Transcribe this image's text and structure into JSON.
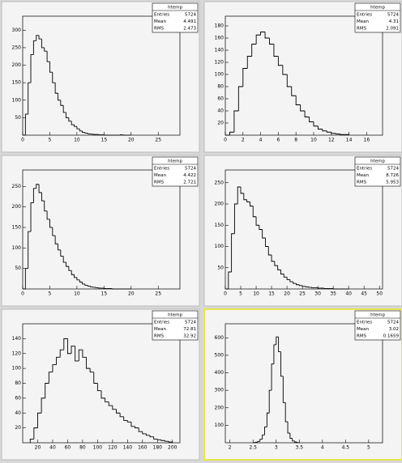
{
  "chart_data": [
    {
      "type": "histogram",
      "color": "#000000",
      "bins": [
        0,
        0.5,
        1,
        1.5,
        2,
        2.5,
        3,
        3.5,
        4,
        4.5,
        5,
        5.5,
        6,
        6.5,
        7,
        7.5,
        8,
        8.5,
        9,
        9.5,
        10,
        10.5,
        11,
        11.5,
        12,
        12.5,
        13,
        13.5,
        14,
        14.5,
        15,
        15.5,
        16,
        16.5,
        17,
        17.5,
        18,
        18.5,
        19,
        19.5,
        20
      ],
      "values": [
        0,
        60,
        150,
        230,
        270,
        285,
        275,
        250,
        240,
        210,
        180,
        150,
        120,
        100,
        85,
        65,
        50,
        40,
        30,
        25,
        18,
        12,
        8,
        6,
        4,
        3,
        2,
        2,
        1,
        1,
        0,
        0,
        0,
        0,
        0,
        0,
        1,
        0,
        0,
        0
      ],
      "xlim": [
        0,
        29
      ],
      "xticks": [
        0,
        5,
        10,
        15,
        20,
        25
      ],
      "ylim": [
        0,
        340
      ],
      "yticks": [
        50,
        100,
        150,
        200,
        250,
        300
      ],
      "stats": {
        "name": "htemp",
        "rows": [
          [
            "Entries",
            "5724"
          ],
          [
            "Mean",
            "4.491"
          ],
          [
            "RMS",
            "2.473"
          ]
        ]
      }
    },
    {
      "type": "histogram",
      "color": "#000000",
      "bins": [
        0,
        0.5,
        1,
        1.5,
        2,
        2.5,
        3,
        3.5,
        4,
        4.5,
        5,
        5.5,
        6,
        6.5,
        7,
        7.5,
        8,
        8.5,
        9,
        9.5,
        10,
        10.5,
        11,
        11.5,
        12,
        12.5,
        13,
        13.5,
        14
      ],
      "values": [
        0,
        5,
        40,
        80,
        110,
        130,
        150,
        165,
        170,
        160,
        150,
        130,
        115,
        100,
        80,
        65,
        50,
        40,
        30,
        22,
        15,
        10,
        7,
        5,
        3,
        2,
        1,
        1
      ],
      "xlim": [
        0,
        17.8
      ],
      "xticks": [
        0,
        2,
        4,
        6,
        8,
        10,
        12,
        14,
        16
      ],
      "ylim": [
        0,
        196
      ],
      "yticks": [
        20,
        40,
        60,
        80,
        100,
        120,
        140,
        160,
        180
      ],
      "stats": {
        "name": "htemp",
        "rows": [
          [
            "Entries",
            "5724"
          ],
          [
            "Mean",
            "4.31"
          ],
          [
            "RMS",
            "2.091"
          ]
        ]
      }
    },
    {
      "type": "histogram",
      "color": "#000000",
      "bins": [
        0,
        0.5,
        1,
        1.5,
        2,
        2.5,
        3,
        3.5,
        4,
        4.5,
        5,
        5.5,
        6,
        6.5,
        7,
        7.5,
        8,
        8.5,
        9,
        9.5,
        10,
        10.5,
        11,
        11.5,
        12,
        12.5,
        13,
        13.5,
        14,
        14.5,
        15,
        15.5,
        16,
        16.5,
        17,
        17.5,
        18,
        18.5,
        19,
        19.5,
        20
      ],
      "values": [
        0,
        50,
        140,
        210,
        245,
        255,
        235,
        215,
        190,
        170,
        150,
        130,
        110,
        95,
        80,
        65,
        55,
        45,
        35,
        28,
        22,
        17,
        12,
        9,
        7,
        5,
        4,
        3,
        2,
        2,
        1,
        1,
        1,
        0,
        0,
        0,
        0,
        0,
        0,
        0
      ],
      "xlim": [
        0,
        29
      ],
      "xticks": [
        0,
        5,
        10,
        15,
        20,
        25
      ],
      "ylim": [
        0,
        290
      ],
      "yticks": [
        50,
        100,
        150,
        200,
        250
      ],
      "stats": {
        "name": "htemp",
        "rows": [
          [
            "Entries",
            "5724"
          ],
          [
            "Mean",
            "4.422"
          ],
          [
            "RMS",
            "2.721"
          ]
        ]
      }
    },
    {
      "type": "histogram",
      "color": "#000000",
      "bins": [
        0,
        1,
        2,
        3,
        4,
        5,
        6,
        7,
        8,
        9,
        10,
        11,
        12,
        13,
        14,
        15,
        16,
        17,
        18,
        19,
        20,
        21,
        22,
        23,
        24,
        25,
        26,
        27,
        28,
        29,
        30,
        31,
        32,
        33,
        34,
        35,
        36,
        37,
        38,
        39,
        40
      ],
      "values": [
        0,
        40,
        130,
        200,
        240,
        225,
        210,
        205,
        195,
        170,
        150,
        140,
        120,
        100,
        80,
        65,
        55,
        45,
        35,
        28,
        22,
        17,
        13,
        10,
        8,
        6,
        5,
        4,
        3,
        3,
        2,
        2,
        1,
        1,
        1,
        0,
        0,
        0,
        0,
        0
      ],
      "xlim": [
        0,
        51
      ],
      "xticks": [
        0,
        5,
        10,
        15,
        20,
        25,
        30,
        35,
        40,
        45,
        50
      ],
      "ylim": [
        0,
        280
      ],
      "yticks": [
        50,
        100,
        150,
        200,
        250
      ],
      "stats": {
        "name": "htemp",
        "rows": [
          [
            "Entries",
            "5724"
          ],
          [
            "Mean",
            "8.726"
          ],
          [
            "RMS",
            "5.953"
          ]
        ]
      }
    },
    {
      "type": "histogram",
      "color": "#000000",
      "bins": [
        10,
        15,
        20,
        25,
        30,
        35,
        40,
        45,
        50,
        55,
        60,
        65,
        70,
        75,
        80,
        85,
        90,
        95,
        100,
        105,
        110,
        115,
        120,
        125,
        130,
        135,
        140,
        145,
        150,
        155,
        160,
        165,
        170,
        175,
        180,
        185,
        190,
        195,
        200
      ],
      "values": [
        5,
        20,
        40,
        60,
        80,
        95,
        105,
        115,
        125,
        140,
        120,
        130,
        110,
        125,
        115,
        100,
        95,
        80,
        70,
        60,
        55,
        50,
        45,
        40,
        35,
        30,
        28,
        22,
        20,
        15,
        12,
        10,
        8,
        5,
        4,
        3,
        2,
        1
      ],
      "xlim": [
        0,
        210
      ],
      "xticks": [
        20,
        40,
        60,
        80,
        100,
        120,
        140,
        160,
        180,
        200
      ],
      "ylim": [
        0,
        160
      ],
      "yticks": [
        20,
        40,
        60,
        80,
        100,
        120,
        140
      ],
      "stats": {
        "name": "htemp",
        "rows": [
          [
            "Entries",
            "5724"
          ],
          [
            "Mean",
            "72.81"
          ],
          [
            "RMS",
            "32.92"
          ]
        ]
      }
    },
    {
      "type": "histogram",
      "color": "#000000",
      "bins": [
        2.5,
        2.55,
        2.6,
        2.65,
        2.7,
        2.75,
        2.8,
        2.85,
        2.9,
        2.95,
        3,
        3.05,
        3.1,
        3.15,
        3.2,
        3.25,
        3.3,
        3.35,
        3.4,
        3.45,
        3.5
      ],
      "values": [
        1,
        3,
        8,
        20,
        45,
        90,
        170,
        300,
        450,
        560,
        605,
        520,
        380,
        230,
        120,
        55,
        25,
        10,
        4,
        1
      ],
      "xlim": [
        1.9,
        5.3
      ],
      "xticks": [
        2,
        2.5,
        3,
        3.5,
        4,
        4.5,
        5
      ],
      "ylim": [
        0,
        680
      ],
      "yticks": [
        100,
        200,
        300,
        400,
        500,
        600
      ],
      "stats": {
        "name": "htemp",
        "rows": [
          [
            "Entries",
            "5724"
          ],
          [
            "Mean",
            "3.02"
          ],
          [
            "RMS",
            "0.1659"
          ]
        ]
      }
    }
  ]
}
